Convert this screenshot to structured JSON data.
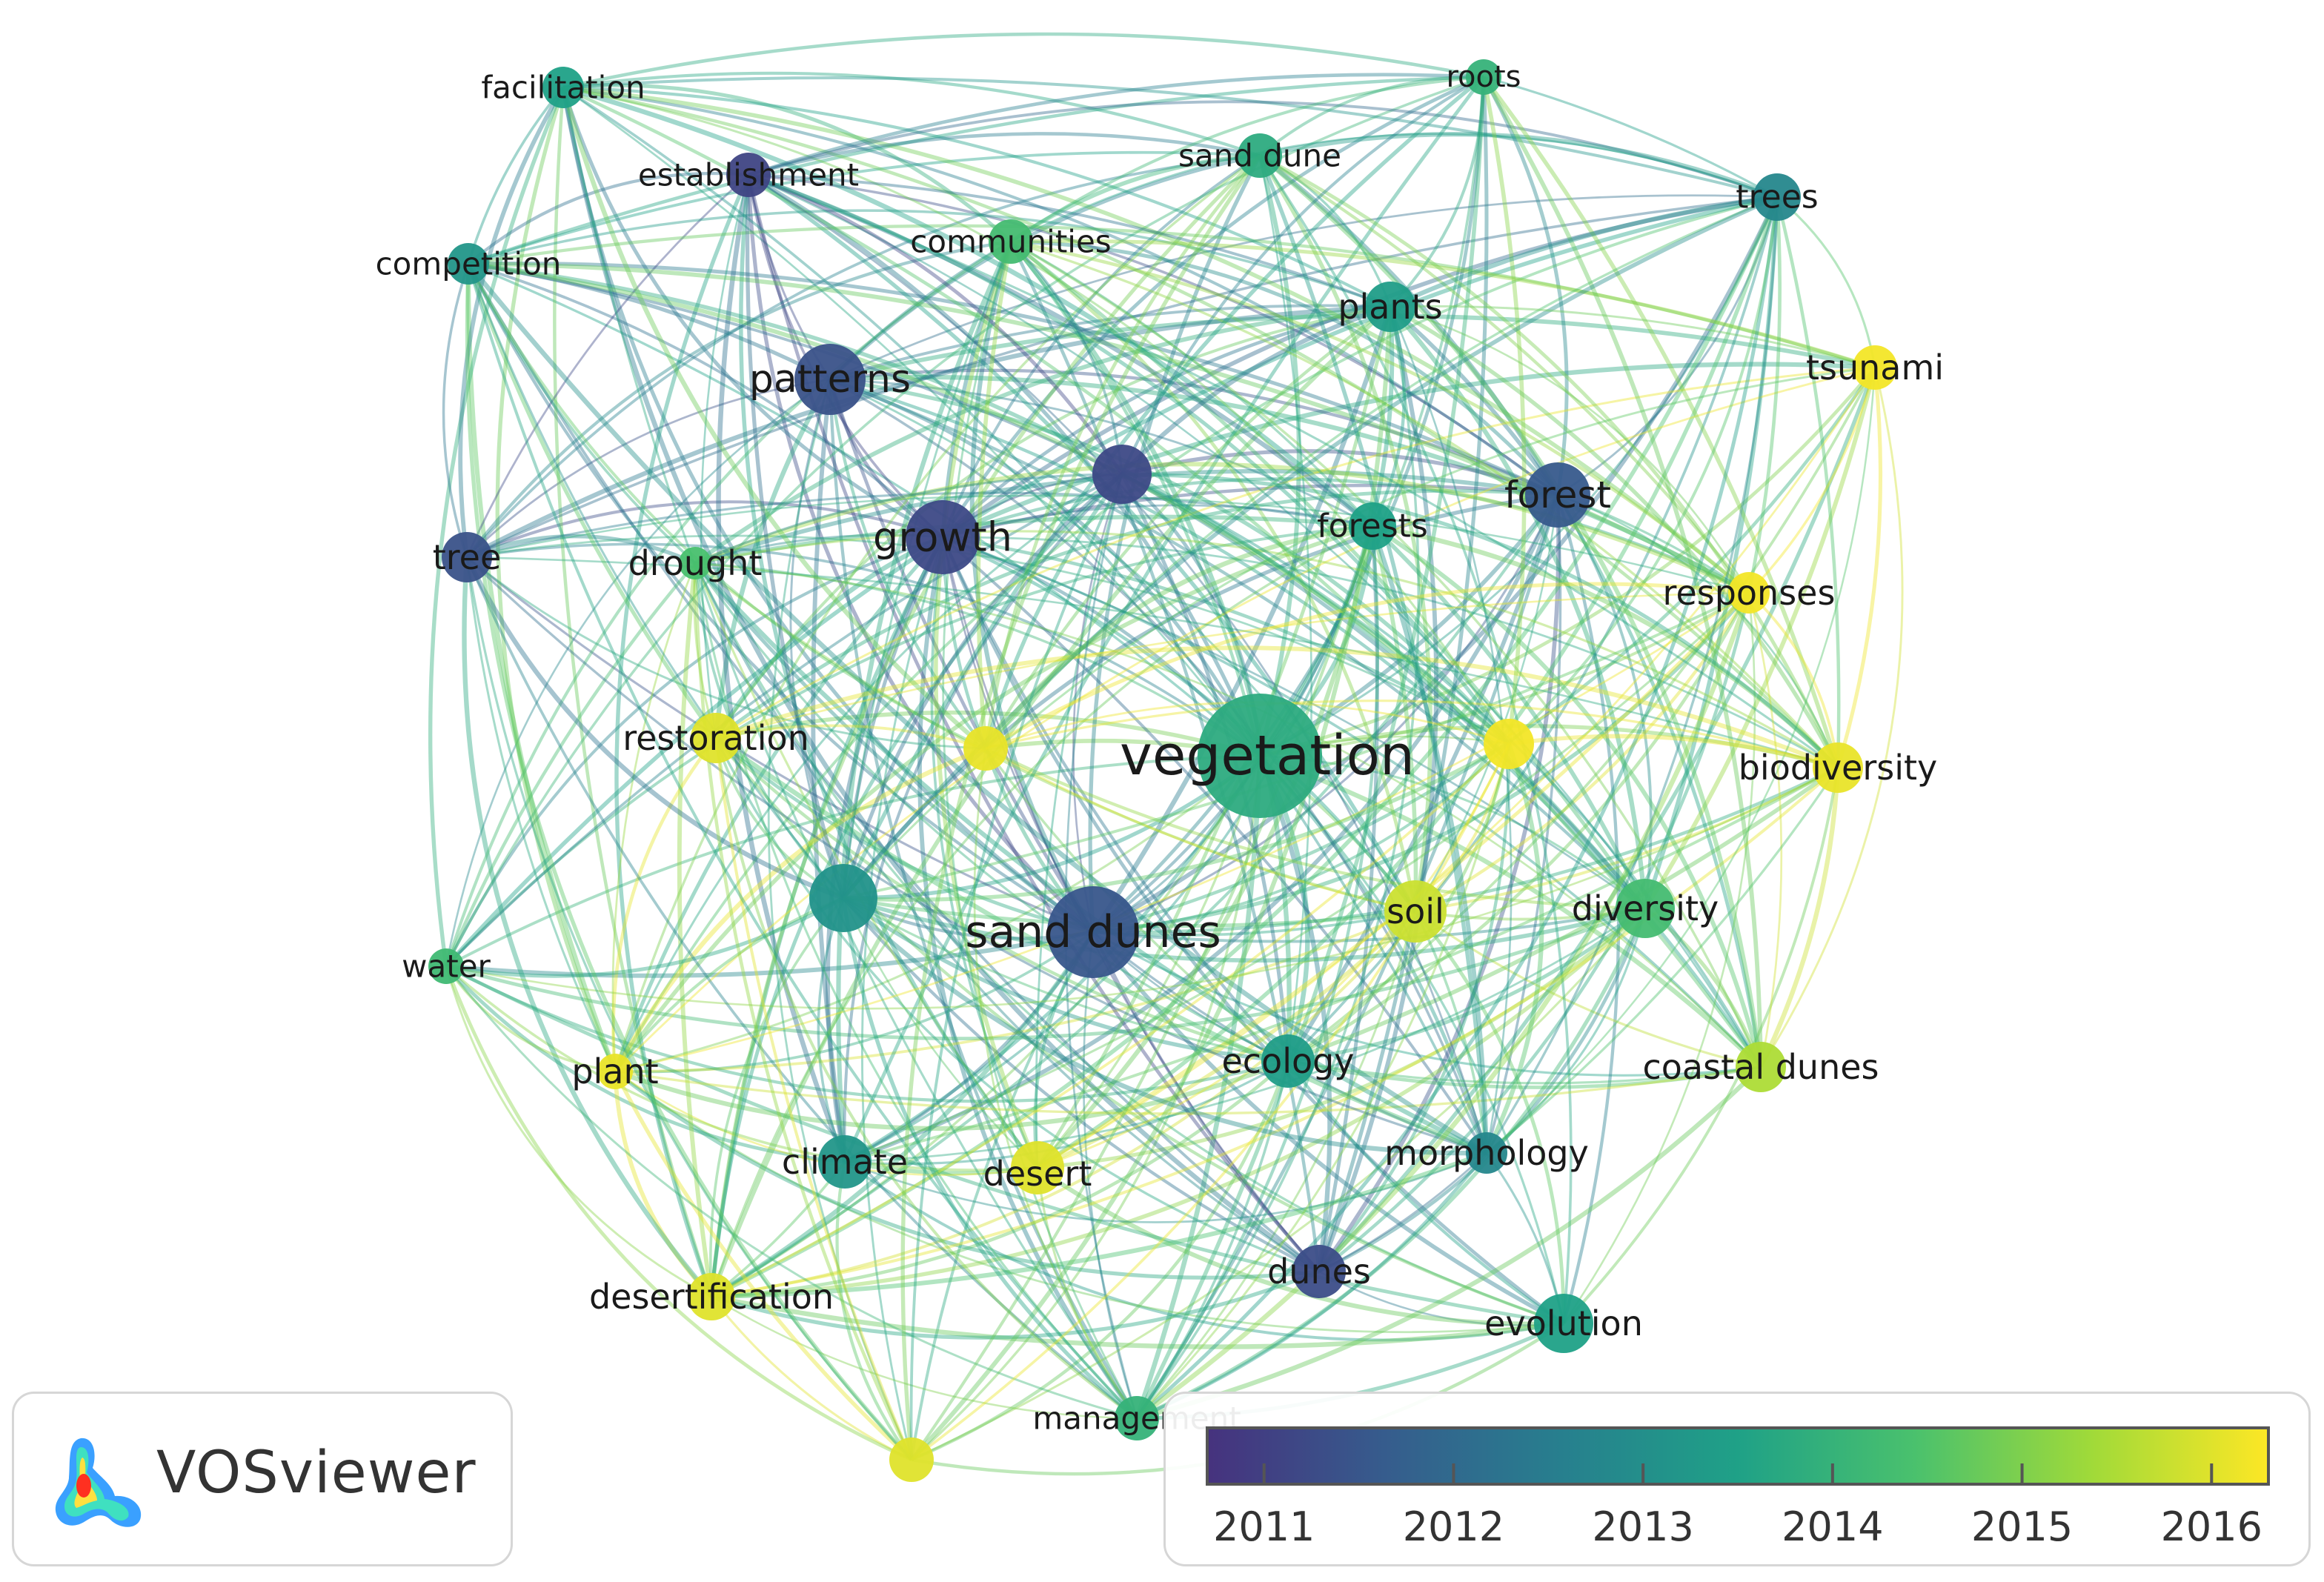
{
  "title": "",
  "nodes": [
    {
      "label": "vegetation",
      "year": 2013.8
    },
    {
      "label": "sand dunes",
      "year": 2011.5
    },
    {
      "label": "growth",
      "year": 2011.2
    },
    {
      "label": "patterns",
      "year": 2011.4
    },
    {
      "label": "forest",
      "year": 2011.6
    },
    {
      "label": "soil",
      "year": 2015.8
    },
    {
      "label": "diversity",
      "year": 2014.3
    },
    {
      "label": "evolution",
      "year": 2013.5
    },
    {
      "label": "ecology",
      "year": 2013.4
    },
    {
      "label": "dunes",
      "year": 2011.3
    },
    {
      "label": "climate",
      "year": 2013.2
    },
    {
      "label": "desert",
      "year": 2016.0
    },
    {
      "label": "desertification",
      "year": 2016.0
    },
    {
      "label": "plant",
      "year": 2016.1
    },
    {
      "label": "water",
      "year": 2014.2
    },
    {
      "label": "tree",
      "year": 2011.4
    },
    {
      "label": "drought",
      "year": 2014.4
    },
    {
      "label": "restoration",
      "year": 2016.0
    },
    {
      "label": "competition",
      "year": 2013.2
    },
    {
      "label": "facilitation",
      "year": 2013.5
    },
    {
      "label": "establishment",
      "year": 2011.1
    },
    {
      "label": "communities",
      "year": 2014.3
    },
    {
      "label": "sand dune",
      "year": 2013.8
    },
    {
      "label": "roots",
      "year": 2014.0
    },
    {
      "label": "trees",
      "year": 2012.8
    },
    {
      "label": "plants",
      "year": 2013.4
    },
    {
      "label": "forests",
      "year": 2013.5
    },
    {
      "label": "tsunami",
      "year": 2016.2
    },
    {
      "label": "responses",
      "year": 2016.2
    },
    {
      "label": "biodiversity",
      "year": 2016.1
    },
    {
      "label": "coastal dunes",
      "year": 2015.5
    },
    {
      "label": "morphology",
      "year": 2012.8
    },
    {
      "label": "management",
      "year": 2014.0
    },
    {
      "label": "",
      "year": 2011.2
    },
    {
      "label": "",
      "year": 2016.1
    },
    {
      "label": "",
      "year": 2016.2
    },
    {
      "label": "",
      "year": 2013.1
    },
    {
      "label": "",
      "year": 2016.0
    }
  ],
  "legend": {
    "ticks": [
      "2011",
      "2012",
      "2013",
      "2014",
      "2015",
      "2016"
    ],
    "range": [
      2010.7,
      2016.3
    ]
  },
  "logo": {
    "text": "VOSviewer"
  },
  "colors": {
    "scale": [
      "#46327e",
      "#365c8d",
      "#277f8e",
      "#1fa187",
      "#4ac16d",
      "#a0da39",
      "#fde725"
    ]
  }
}
